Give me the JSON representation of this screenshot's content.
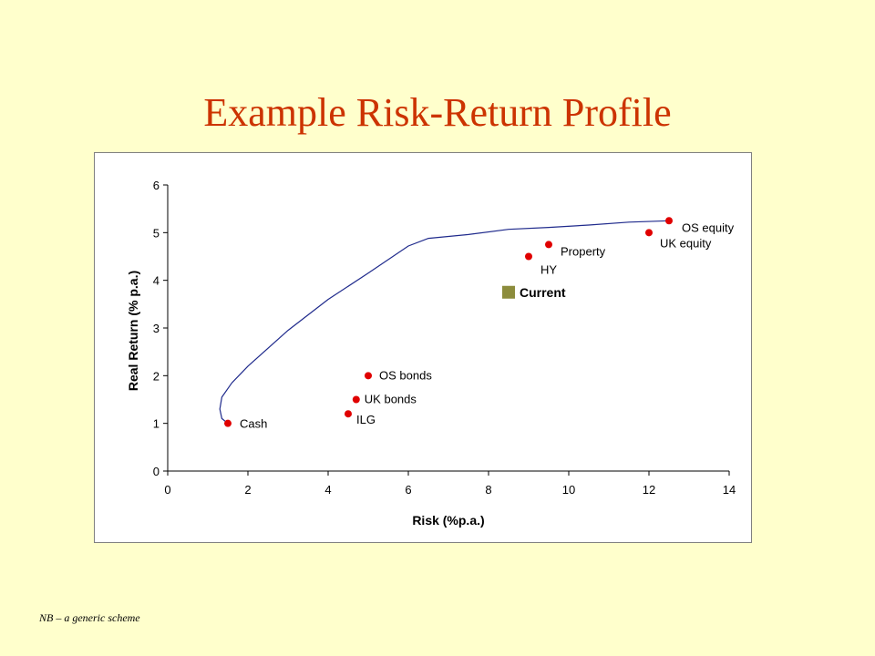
{
  "slide": {
    "title": "Example Risk-Return Profile",
    "footnote": "NB – a generic scheme"
  },
  "colors": {
    "background": "#FFFFCC",
    "title": "#CC3300",
    "frontier": "#1F2A8C",
    "asset_point": "#E00000",
    "current_marker": "#8C8C3C"
  },
  "chart_data": {
    "type": "scatter",
    "xlabel": "Risk (%p.a.)",
    "ylabel": "Real Return (% p.a.)",
    "xlim": [
      0,
      14
    ],
    "ylim": [
      0,
      6
    ],
    "x_ticks": [
      0,
      2,
      4,
      6,
      8,
      10,
      12,
      14
    ],
    "y_ticks": [
      0,
      1,
      2,
      3,
      4,
      5,
      6
    ],
    "grid": false,
    "series": [
      {
        "type": "scatter",
        "points": [
          {
            "label": "Cash",
            "x": 1.5,
            "y": 1.0
          },
          {
            "label": "ILG",
            "x": 4.5,
            "y": 1.2
          },
          {
            "label": "UK bonds",
            "x": 4.7,
            "y": 1.5
          },
          {
            "label": "OS bonds",
            "x": 5.0,
            "y": 2.0
          },
          {
            "label": "HY",
            "x": 9.0,
            "y": 4.5
          },
          {
            "label": "Property",
            "x": 9.5,
            "y": 4.75
          },
          {
            "label": "UK equity",
            "x": 12.0,
            "y": 5.0
          },
          {
            "label": "OS equity",
            "x": 12.5,
            "y": 5.25
          }
        ]
      },
      {
        "type": "line",
        "points": [
          {
            "x": 1.5,
            "y": 1.0
          },
          {
            "x": 1.35,
            "y": 1.1
          },
          {
            "x": 1.3,
            "y": 1.3
          },
          {
            "x": 1.35,
            "y": 1.55
          },
          {
            "x": 1.6,
            "y": 1.85
          },
          {
            "x": 2.0,
            "y": 2.2
          },
          {
            "x": 3.0,
            "y": 2.95
          },
          {
            "x": 4.0,
            "y": 3.6
          },
          {
            "x": 5.0,
            "y": 4.15
          },
          {
            "x": 6.0,
            "y": 4.72
          },
          {
            "x": 6.5,
            "y": 4.88
          },
          {
            "x": 7.5,
            "y": 4.96
          },
          {
            "x": 8.5,
            "y": 5.07
          },
          {
            "x": 9.5,
            "y": 5.11
          },
          {
            "x": 10.5,
            "y": 5.16
          },
          {
            "x": 11.5,
            "y": 5.22
          },
          {
            "x": 12.5,
            "y": 5.25
          }
        ]
      },
      {
        "type": "scatter",
        "name": "Current",
        "points": [
          {
            "label": "Current",
            "x": 8.5,
            "y": 3.75
          }
        ]
      }
    ]
  }
}
